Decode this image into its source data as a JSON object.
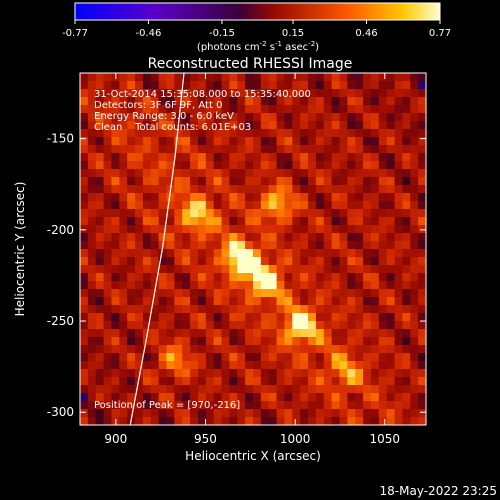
{
  "colorbar": {
    "ticks": [
      "-0.77",
      "-0.46",
      "-0.15",
      "0.15",
      "0.46",
      "0.77"
    ],
    "units_main": "(photons cm",
    "units_exp1": "-2",
    "units_mid": " s",
    "units_exp2": "-1",
    "units_end": " asec",
    "units_exp3": "-2",
    "units_close": ")"
  },
  "annotations": {
    "line1": "31-Oct-2014 15:35:08.000 to 15:35:40.000",
    "line2": "Detectors: 3F 6F 9F, Att 0",
    "line3": "Energy Range: 3.0 - 6.0 keV",
    "line4": "Clean    Total counts: 6.01E+03",
    "peak": "Position of Peak = [970,-216]"
  },
  "footer": {
    "timestamp": "18-May-2022 23:25"
  },
  "chart_data": {
    "type": "heatmap",
    "title": "Reconstructed RHESSI Image",
    "xlabel": "Heliocentric X (arcsec)",
    "ylabel": "Heliocentric Y (arcsec)",
    "xlim": [
      880,
      1073
    ],
    "ylim": [
      -307,
      -114
    ],
    "xticks": [
      "900",
      "950",
      "1000",
      "1050"
    ],
    "yticks": [
      "-150",
      "-200",
      "-250",
      "-300"
    ],
    "colorbar_range": [
      -0.77,
      0.77
    ],
    "peak": {
      "x": 970,
      "y": -216
    },
    "sources": [
      {
        "x": 970,
        "y": -216,
        "strength": 1.0
      },
      {
        "x": 983,
        "y": -228,
        "strength": 0.85
      },
      {
        "x": 1003,
        "y": -253,
        "strength": 0.85
      },
      {
        "x": 990,
        "y": -186,
        "strength": 0.75
      },
      {
        "x": 945,
        "y": -192,
        "strength": 0.6
      },
      {
        "x": 933,
        "y": -272,
        "strength": 0.55
      },
      {
        "x": 1028,
        "y": -278,
        "strength": 0.45
      }
    ],
    "limb_curve": [
      {
        "x": 938,
        "y": -114
      },
      {
        "x": 933,
        "y": -160
      },
      {
        "x": 926,
        "y": -210
      },
      {
        "x": 917,
        "y": -260
      },
      {
        "x": 908,
        "y": -307
      }
    ]
  }
}
